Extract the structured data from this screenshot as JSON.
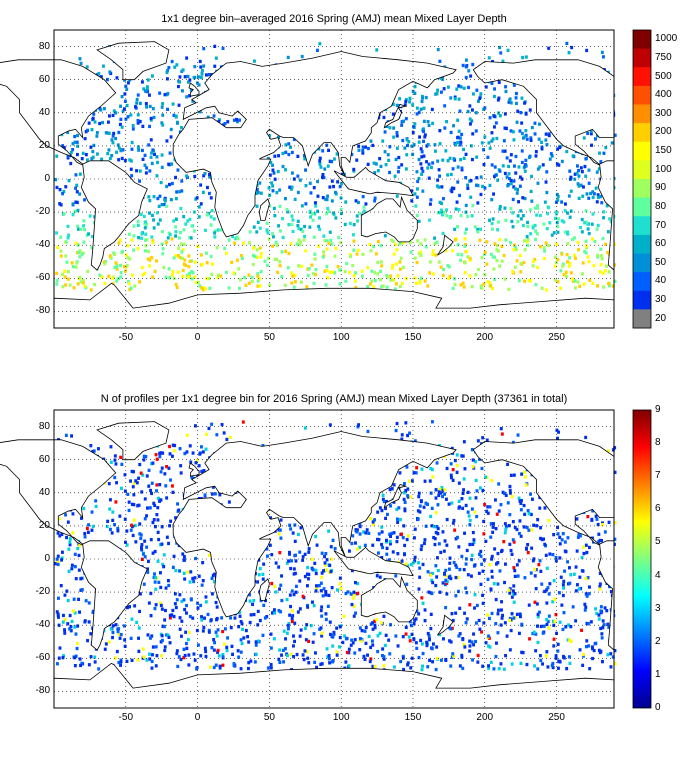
{
  "panels": [
    {
      "title": "1x1 degree bin–averaged 2016 Spring (AMJ) mean Mixed Layer Depth",
      "x_ticks": [
        "-50",
        "0",
        "50",
        "100",
        "150",
        "200",
        "250"
      ],
      "y_ticks": [
        "80",
        "60",
        "40",
        "20",
        "0",
        "-20",
        "-40",
        "-60",
        "-80"
      ],
      "colorbar_ticks": [
        "1000",
        "750",
        "500",
        "400",
        "300",
        "200",
        "150",
        "100",
        "90",
        "80",
        "70",
        "60",
        "50",
        "40",
        "30",
        "20"
      ],
      "colorbar_colors": [
        "#7f0000",
        "#bf0000",
        "#ff1000",
        "#ff5000",
        "#ff8f00",
        "#ffcf00",
        "#ffff00",
        "#dfff1f",
        "#9fff5f",
        "#5fffa0",
        "#1fe0d0",
        "#00b0c8",
        "#0090d8",
        "#0060ff",
        "#0030ef",
        "#808080"
      ]
    },
    {
      "title": "N of profiles per 1x1 degree bin for 2016 Spring (AMJ) mean Mixed Layer Depth  (37361 in total)",
      "x_ticks": [
        "-50",
        "0",
        "50",
        "100",
        "150",
        "200",
        "250"
      ],
      "y_ticks": [
        "80",
        "60",
        "40",
        "20",
        "0",
        "-20",
        "-40",
        "-60",
        "-80"
      ],
      "colorbar_ticks": [
        "9",
        "8",
        "7",
        "6",
        "5",
        "4",
        "3",
        "2",
        "1",
        "0"
      ]
    }
  ],
  "map_extent": {
    "lon": [
      -100,
      290
    ],
    "lat": [
      -90,
      90
    ]
  }
}
